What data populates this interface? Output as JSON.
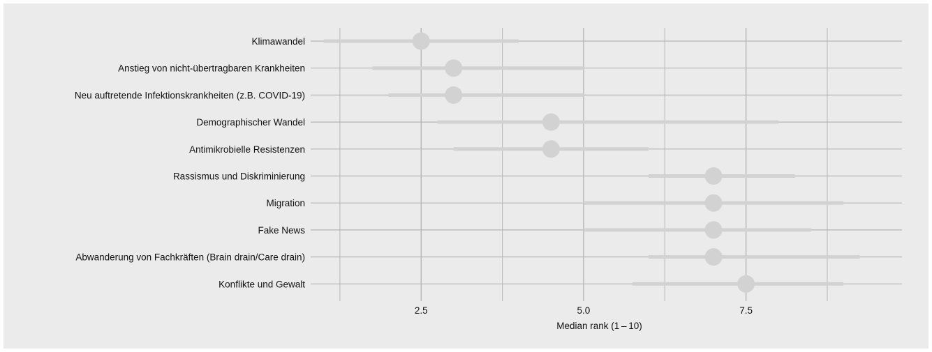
{
  "chart_data": {
    "type": "interval-dot",
    "xlabel": "Median rank (1 – 10)",
    "xlim": [
      0.8,
      9.9
    ],
    "x_ticks": [
      2.5,
      5.0,
      7.5
    ],
    "x_tick_labels": [
      "2.5",
      "5.0",
      "7.5"
    ],
    "x_minor_gridlines": [
      1.25,
      3.75,
      6.25,
      8.75
    ],
    "grid": true,
    "categories": [
      "Klimawandel",
      "Anstieg von nicht-übertragbaren Krankheiten",
      "Neu auftretende Infektionskrankheiten (z.B. COVID-19)",
      "Demographischer Wandel",
      "Antimikrobielle Resistenzen",
      "Rassismus und Diskriminierung",
      "Migration",
      "Fake News",
      "Abwanderung von Fachkräften (Brain drain/Care drain)",
      "Konflikte und Gewalt"
    ],
    "median": [
      2.5,
      3.0,
      3.0,
      4.5,
      4.5,
      7.0,
      7.0,
      7.0,
      7.0,
      7.5
    ],
    "low": [
      1.0,
      1.75,
      2.0,
      2.75,
      3.0,
      6.0,
      5.0,
      5.0,
      6.0,
      5.75
    ],
    "high": [
      4.0,
      5.0,
      5.0,
      8.0,
      6.0,
      8.25,
      9.0,
      8.5,
      9.25,
      9.0
    ],
    "colors": {
      "panel": "#ebebeb",
      "gridline": "#b5b5b5",
      "interval": "#d2d2d2",
      "point": "#d2d2d2"
    }
  }
}
